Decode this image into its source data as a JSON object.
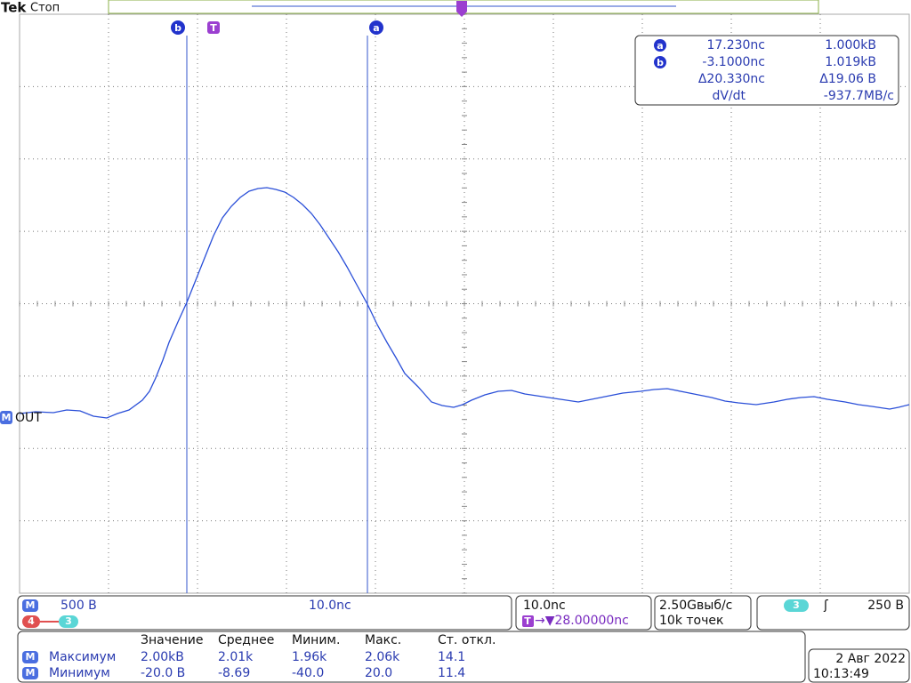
{
  "header": {
    "brand": "Tek",
    "status": "Стоп"
  },
  "markers": {
    "cursor_b": "b",
    "trigger_pos": "T",
    "cursor_a": "a"
  },
  "readout": {
    "a_badge": "a",
    "a_time": "17.230nc",
    "a_volt": "1.000kВ",
    "b_badge": "b",
    "b_time": "-3.1000nc",
    "b_volt": "1.019kВ",
    "delta_time": "Δ20.330nc",
    "delta_volt": "Δ19.06 В",
    "slope_label": "dV/dt",
    "slope_value": "-937.7МВ/с"
  },
  "channel": {
    "badge": "M",
    "label": "OUT"
  },
  "status_bar": {
    "math_badge": "M",
    "math_scale": "500 В",
    "math_time": "10.0nc",
    "source_a": "4",
    "source_b": "3",
    "timebase": "10.0nc",
    "trigger_badge": "T",
    "trigger_delay": "→▼28.00000nc",
    "sample_rate": "2.50Gвыб/с",
    "record_length": "10k точек",
    "trigger_source": "3",
    "trigger_slope": "ʃ",
    "trigger_level": "250 В"
  },
  "measurements": {
    "headers": [
      "Значение",
      "Среднее",
      "Миним.",
      "Макс.",
      "Ст. откл."
    ],
    "rows": [
      {
        "badge": "M",
        "name": "Максимум",
        "cells": [
          "2.00kВ",
          "2.01k",
          "1.96k",
          "2.06k",
          "14.1"
        ]
      },
      {
        "badge": "M",
        "name": "Минимум",
        "cells": [
          "-20.0 В",
          "-8.69",
          "-40.0",
          "20.0",
          "11.4"
        ]
      }
    ]
  },
  "datetime": {
    "date": "2 Авг 2022",
    "time": "10:13:49"
  }
}
